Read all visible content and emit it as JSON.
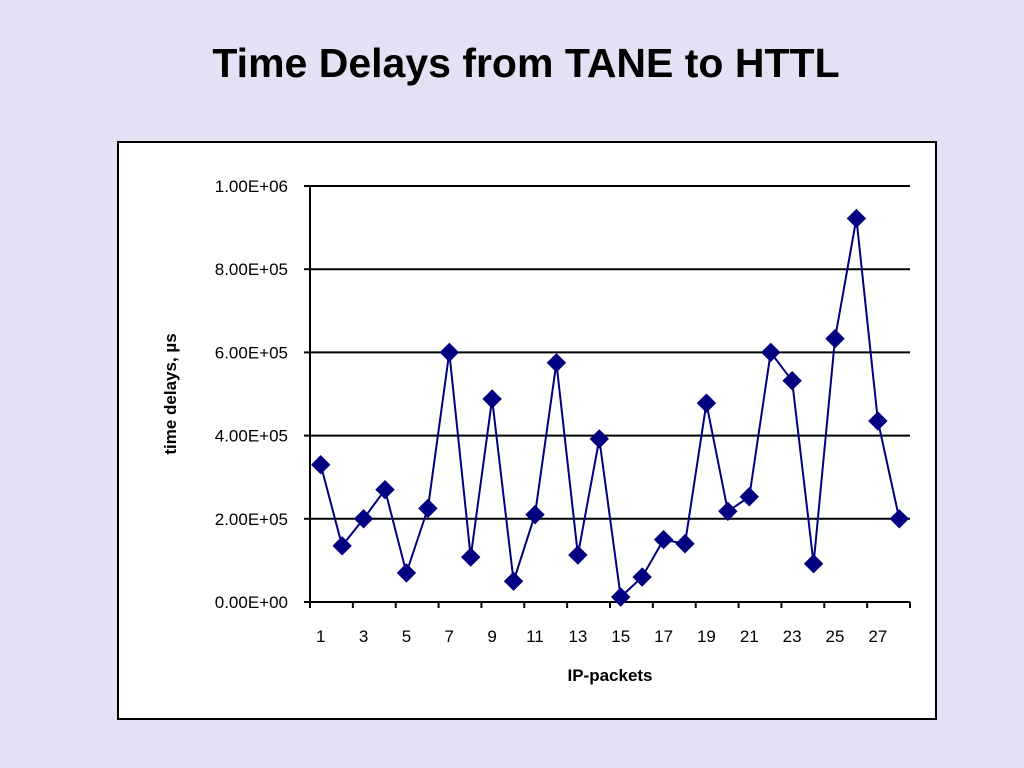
{
  "slide": {
    "title": "Time Delays from TANE to HTTL"
  },
  "chart_data": {
    "type": "line",
    "title": "",
    "xlabel": "IP-packets",
    "ylabel": "time delays, µs",
    "x_tick_labels": [
      "1",
      "3",
      "5",
      "7",
      "9",
      "11",
      "13",
      "15",
      "17",
      "19",
      "21",
      "23",
      "25",
      "27"
    ],
    "y_tick_labels": [
      "0.00E+00",
      "2.00E+05",
      "4.00E+05",
      "6.00E+05",
      "8.00E+05",
      "1.00E+06"
    ],
    "ylim": [
      0,
      1000000
    ],
    "y_ticks": [
      0,
      200000,
      400000,
      600000,
      800000,
      1000000
    ],
    "grid": "horizontal",
    "legend": "none",
    "marker": "diamond",
    "color": "#000080",
    "series": [
      {
        "x": [
          1,
          2,
          3,
          4,
          5,
          6,
          7,
          8,
          9,
          10,
          11,
          12,
          13,
          14,
          15,
          16,
          17,
          18,
          19,
          20,
          21,
          22,
          23,
          24,
          25,
          26,
          27,
          28
        ],
        "values": [
          330000,
          135000,
          200000,
          270000,
          70000,
          225000,
          600000,
          108000,
          488000,
          50000,
          210000,
          575000,
          113000,
          392000,
          12000,
          60000,
          150000,
          140000,
          478000,
          218000,
          253000,
          600000,
          532000,
          92000,
          633000,
          922000,
          435000,
          200000
        ]
      }
    ]
  }
}
